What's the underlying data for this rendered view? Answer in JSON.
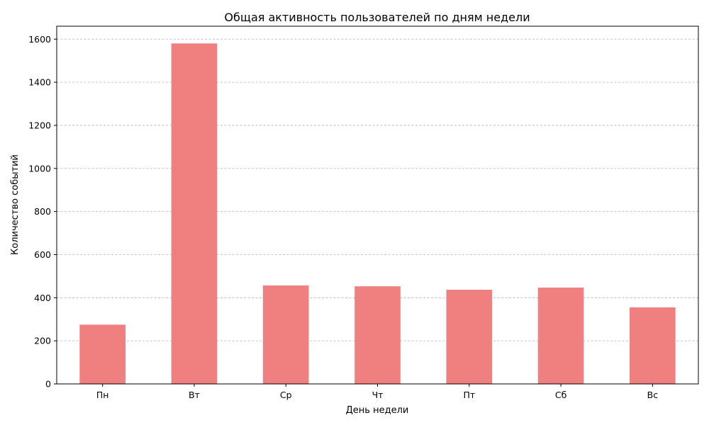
{
  "chart_data": {
    "type": "bar",
    "title": "Общая активность пользователей по дням недели",
    "xlabel": "День недели",
    "ylabel": "Количество событий",
    "categories": [
      "Пн",
      "Вт",
      "Ср",
      "Чт",
      "Пт",
      "Сб",
      "Вс"
    ],
    "values": [
      275,
      1580,
      457,
      453,
      437,
      447,
      355
    ],
    "ylim": [
      0,
      1660
    ],
    "yticks": [
      0,
      200,
      400,
      600,
      800,
      1000,
      1200,
      1400,
      1600
    ],
    "grid": "horizontal dashed",
    "colors": {
      "bar": "#f08080",
      "grid": "#b0b0b0",
      "axis": "#000000"
    }
  }
}
